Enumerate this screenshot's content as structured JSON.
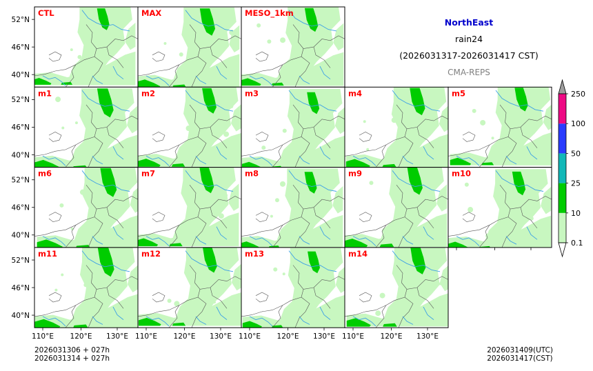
{
  "title": {
    "region": "NorthEast",
    "variable": "rain24",
    "period": "(2026031317-2026031417 CST)",
    "model": "CMA-REPS"
  },
  "panels": [
    {
      "label": "CTL",
      "variant": 0
    },
    {
      "label": "MAX",
      "variant": 1
    },
    {
      "label": "MESO_1km",
      "variant": 2
    },
    {
      "label": "m1",
      "variant": 3
    },
    {
      "label": "m2",
      "variant": 4
    },
    {
      "label": "m3",
      "variant": 5
    },
    {
      "label": "m4",
      "variant": 6
    },
    {
      "label": "m5",
      "variant": 7
    },
    {
      "label": "m6",
      "variant": 8
    },
    {
      "label": "m7",
      "variant": 9
    },
    {
      "label": "m8",
      "variant": 10
    },
    {
      "label": "m9",
      "variant": 11
    },
    {
      "label": "m10",
      "variant": 12
    },
    {
      "label": "m11",
      "variant": 13
    },
    {
      "label": "m12",
      "variant": 14
    },
    {
      "label": "m13",
      "variant": 15
    },
    {
      "label": "m14",
      "variant": 16
    }
  ],
  "latitude_ticks": [
    "52°N",
    "46°N",
    "40°N"
  ],
  "longitude_ticks": [
    "110°E",
    "120°E",
    "130°E"
  ],
  "colorbar": {
    "levels": [
      "0.1",
      "10",
      "25",
      "50",
      "100",
      "250"
    ],
    "colors": [
      "#c8f7c0",
      "#00cc00",
      "#11b8b8",
      "#2a3cff",
      "#ee0a84"
    ],
    "under_color": "#ffffff",
    "over_color": "#9e9e9e"
  },
  "colors": {
    "panel_label": "#ff0000",
    "region_title": "#0000cc",
    "model_name": "#808080",
    "river": "#3ca0e6",
    "border": "#555555",
    "light_rain": "#c8f7c0",
    "moderate_rain": "#00cc00"
  },
  "init_info": {
    "line1": "2026031306  +  027h",
    "line2": "2026031314  +  027h"
  },
  "valid_info": {
    "utc": "2026031409(UTC)",
    "cst": "2026031417(CST)"
  }
}
